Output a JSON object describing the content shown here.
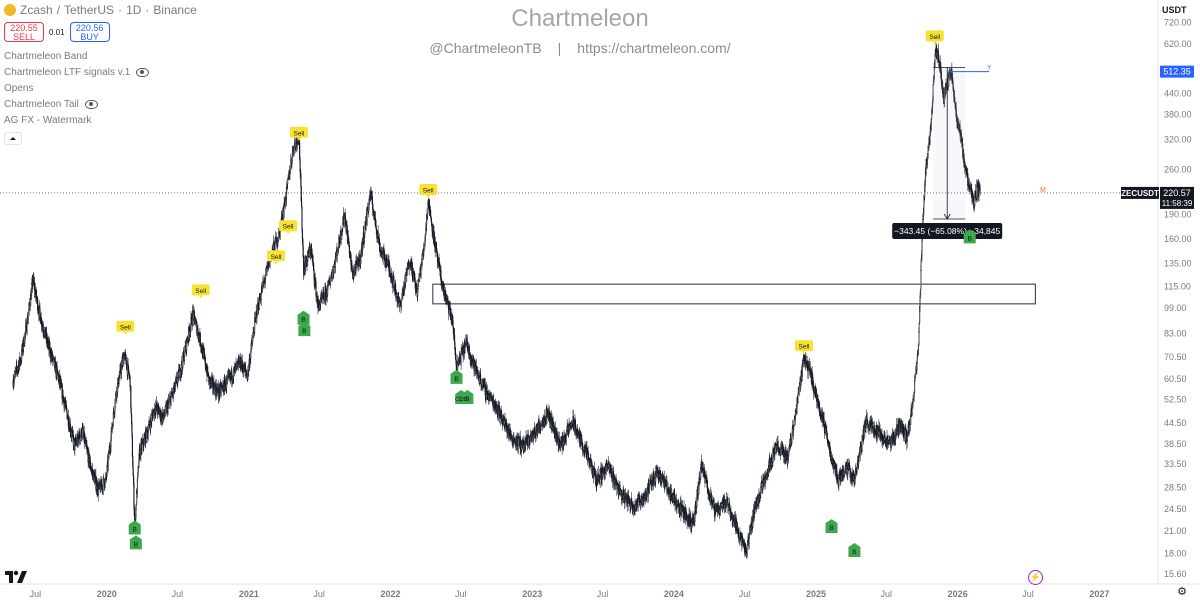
{
  "header": {
    "symbol": "Zcash",
    "separator": "/",
    "quote": "TetherUS",
    "interval": "1D",
    "exchange": "Binance",
    "sell_price": "220.55",
    "sell_label": "SELL",
    "spread": "0.01",
    "buy_price": "220.56",
    "buy_label": "BUY",
    "indicators": [
      {
        "label": "Chartmeleon Band",
        "hidden": false
      },
      {
        "label": "Chartmeleon LTF signals v.1",
        "hidden": true
      },
      {
        "label": "Opens",
        "hidden": false
      },
      {
        "label": "Chartmeleon Tail",
        "hidden": true
      },
      {
        "label": "AG FX - Watermark",
        "hidden": false
      }
    ]
  },
  "watermark": {
    "brand": "Chartmeleon",
    "handle": "@ChartmeleonTB",
    "divider": "|",
    "url": "https://chartmeleon.com/"
  },
  "currency": "USDT",
  "colors": {
    "sell_badge": "#f7e233",
    "buy_badge": "#3ea84d",
    "last_price_badge": "#131722",
    "horizontal_ray": "#2962ff",
    "sell_text": "#f23645",
    "buy_text": "#2962ff"
  },
  "chart_data": {
    "type": "candlestick",
    "scale": "log",
    "ylim": [
      15.6,
      765
    ],
    "xlim": [
      "2019-04-01",
      "2027-06-01"
    ],
    "y_ticks": [
      "720.00",
      "620.00",
      "440.00",
      "380.00",
      "320.00",
      "260.00",
      "190.00",
      "160.00",
      "135.00",
      "115.00",
      "99.00",
      "83.00",
      "70.50",
      "60.50",
      "52.50",
      "44.50",
      "38.50",
      "33.50",
      "28.50",
      "24.50",
      "21.00",
      "18.00",
      "15.60"
    ],
    "y_tick_values": [
      720,
      620,
      440,
      380,
      320,
      260,
      190,
      160,
      135,
      115,
      99,
      83,
      70.5,
      60.5,
      52.5,
      44.5,
      38.5,
      33.5,
      28.5,
      24.5,
      21,
      18,
      15.6
    ],
    "x_ticks": [
      {
        "label": "Jul",
        "date": "2019-07-01"
      },
      {
        "label": "2020",
        "date": "2020-01-01"
      },
      {
        "label": "Jul",
        "date": "2020-07-01"
      },
      {
        "label": "2021",
        "date": "2021-01-01"
      },
      {
        "label": "Jul",
        "date": "2021-07-01"
      },
      {
        "label": "2022",
        "date": "2022-01-01"
      },
      {
        "label": "Jul",
        "date": "2022-07-01"
      },
      {
        "label": "2023",
        "date": "2023-01-01"
      },
      {
        "label": "Jul",
        "date": "2023-07-01"
      },
      {
        "label": "2024",
        "date": "2024-01-01"
      },
      {
        "label": "Jul",
        "date": "2024-07-01"
      },
      {
        "label": "2025",
        "date": "2025-01-01"
      },
      {
        "label": "Jul",
        "date": "2025-07-01"
      },
      {
        "label": "2026",
        "date": "2026-01-01"
      },
      {
        "label": "Jul",
        "date": "2026-07-01"
      },
      {
        "label": "2027",
        "date": "2027-01-01"
      }
    ],
    "price_path": [
      [
        "2019-05-05",
        60
      ],
      [
        "2019-05-25",
        70
      ],
      [
        "2019-06-10",
        90
      ],
      [
        "2019-06-25",
        120
      ],
      [
        "2019-07-12",
        95
      ],
      [
        "2019-08-05",
        75
      ],
      [
        "2019-08-28",
        62
      ],
      [
        "2019-09-20",
        48
      ],
      [
        "2019-10-10",
        38
      ],
      [
        "2019-10-30",
        42
      ],
      [
        "2019-11-20",
        33
      ],
      [
        "2019-12-10",
        28
      ],
      [
        "2019-12-30",
        30
      ],
      [
        "2020-01-25",
        55
      ],
      [
        "2020-02-15",
        72
      ],
      [
        "2020-03-01",
        60
      ],
      [
        "2020-03-13",
        22
      ],
      [
        "2020-03-25",
        36
      ],
      [
        "2020-04-15",
        42
      ],
      [
        "2020-05-05",
        50
      ],
      [
        "2020-05-25",
        46
      ],
      [
        "2020-06-20",
        55
      ],
      [
        "2020-07-10",
        65
      ],
      [
        "2020-08-10",
        95
      ],
      [
        "2020-08-28",
        80
      ],
      [
        "2020-09-20",
        60
      ],
      [
        "2020-10-15",
        55
      ],
      [
        "2020-11-10",
        60
      ],
      [
        "2020-12-10",
        68
      ],
      [
        "2020-12-28",
        62
      ],
      [
        "2021-01-20",
        95
      ],
      [
        "2021-02-10",
        120
      ],
      [
        "2021-02-28",
        145
      ],
      [
        "2021-03-20",
        165
      ],
      [
        "2021-04-05",
        210
      ],
      [
        "2021-04-25",
        300
      ],
      [
        "2021-05-10",
        330
      ],
      [
        "2021-05-22",
        130
      ],
      [
        "2021-06-10",
        150
      ],
      [
        "2021-06-28",
        100
      ],
      [
        "2021-07-20",
        110
      ],
      [
        "2021-08-10",
        135
      ],
      [
        "2021-09-05",
        190
      ],
      [
        "2021-09-25",
        125
      ],
      [
        "2021-10-15",
        140
      ],
      [
        "2021-11-10",
        220
      ],
      [
        "2021-12-05",
        150
      ],
      [
        "2021-12-30",
        130
      ],
      [
        "2022-01-25",
        100
      ],
      [
        "2022-02-20",
        140
      ],
      [
        "2022-03-10",
        110
      ],
      [
        "2022-03-28",
        150
      ],
      [
        "2022-04-08",
        210
      ],
      [
        "2022-05-01",
        140
      ],
      [
        "2022-05-15",
        115
      ],
      [
        "2022-06-10",
        90
      ],
      [
        "2022-06-20",
        65
      ],
      [
        "2022-07-15",
        78
      ],
      [
        "2022-08-05",
        66
      ],
      [
        "2022-09-05",
        55
      ],
      [
        "2022-10-01",
        50
      ],
      [
        "2022-11-10",
        40
      ],
      [
        "2022-12-10",
        38
      ],
      [
        "2023-01-10",
        42
      ],
      [
        "2023-02-10",
        48
      ],
      [
        "2023-03-15",
        38
      ],
      [
        "2023-04-15",
        45
      ],
      [
        "2023-05-20",
        36
      ],
      [
        "2023-06-15",
        30
      ],
      [
        "2023-07-15",
        33
      ],
      [
        "2023-08-20",
        27
      ],
      [
        "2023-09-20",
        25
      ],
      [
        "2023-10-20",
        27
      ],
      [
        "2023-11-20",
        32
      ],
      [
        "2023-12-25",
        27
      ],
      [
        "2024-01-25",
        24
      ],
      [
        "2024-02-20",
        22
      ],
      [
        "2024-03-12",
        33
      ],
      [
        "2024-04-15",
        24
      ],
      [
        "2024-05-15",
        26
      ],
      [
        "2024-06-15",
        21
      ],
      [
        "2024-07-05",
        18
      ],
      [
        "2024-07-25",
        24
      ],
      [
        "2024-08-20",
        30
      ],
      [
        "2024-09-20",
        38
      ],
      [
        "2024-10-20",
        35
      ],
      [
        "2024-11-10",
        48
      ],
      [
        "2024-11-30",
        70
      ],
      [
        "2024-12-15",
        65
      ],
      [
        "2024-12-30",
        55
      ],
      [
        "2025-01-20",
        45
      ],
      [
        "2025-02-10",
        35
      ],
      [
        "2025-02-28",
        30
      ],
      [
        "2025-03-20",
        33
      ],
      [
        "2025-04-10",
        30
      ],
      [
        "2025-05-10",
        45
      ],
      [
        "2025-06-10",
        42
      ],
      [
        "2025-07-10",
        38
      ],
      [
        "2025-08-05",
        44
      ],
      [
        "2025-08-25",
        40
      ],
      [
        "2025-09-10",
        55
      ],
      [
        "2025-09-22",
        75
      ],
      [
        "2025-10-01",
        160
      ],
      [
        "2025-10-10",
        260
      ],
      [
        "2025-10-22",
        330
      ],
      [
        "2025-11-05",
        600
      ],
      [
        "2025-11-15",
        560
      ],
      [
        "2025-11-25",
        420
      ],
      [
        "2025-12-05",
        470
      ],
      [
        "2025-12-15",
        520
      ],
      [
        "2025-12-25",
        400
      ],
      [
        "2026-01-08",
        330
      ],
      [
        "2026-01-20",
        260
      ],
      [
        "2026-02-01",
        230
      ],
      [
        "2026-02-10",
        205
      ],
      [
        "2026-02-20",
        225
      ],
      [
        "2026-02-28",
        220.57
      ]
    ],
    "signals": [
      {
        "type": "Sell",
        "date": "2020-02-18",
        "price": 87
      },
      {
        "type": "Sell",
        "date": "2020-08-30",
        "price": 112
      },
      {
        "type": "Sell",
        "date": "2021-03-12",
        "price": 142
      },
      {
        "type": "Sell",
        "date": "2021-04-12",
        "price": 175
      },
      {
        "type": "Sell",
        "date": "2021-05-10",
        "price": 335
      },
      {
        "type": "Sell",
        "date": "2022-04-08",
        "price": 225
      },
      {
        "type": "Sell",
        "date": "2024-12-01",
        "price": 76
      },
      {
        "type": "Sell",
        "date": "2025-11-03",
        "price": 655
      },
      {
        "type": "B",
        "date": "2020-03-13",
        "price": 21.4
      },
      {
        "type": "B",
        "date": "2020-03-16",
        "price": 19.3
      },
      {
        "type": "B",
        "date": "2021-05-22",
        "price": 92
      },
      {
        "type": "B",
        "date": "2021-05-24",
        "price": 85
      },
      {
        "type": "B",
        "date": "2022-06-20",
        "price": 61
      },
      {
        "type": "B",
        "date": "2022-07-02",
        "price": 53
      },
      {
        "type": "B",
        "date": "2022-07-18",
        "price": 53
      },
      {
        "type": "B",
        "date": "2025-02-10",
        "price": 21.6
      },
      {
        "type": "B",
        "date": "2025-04-10",
        "price": 18.3
      },
      {
        "type": "B",
        "date": "2026-02-01",
        "price": 162
      }
    ],
    "signal_inner_label": "C 3D",
    "zone": {
      "x0": "2022-04-20",
      "x1": "2026-07-20",
      "y_low": 102,
      "y_high": 117
    },
    "measure": {
      "date": "2025-12-05",
      "from_price": 528,
      "to_price": 184,
      "text": "−343.45 (−65.08%) −34,845"
    },
    "ray": {
      "date_start": "2025-12-10",
      "price": 512.35,
      "label": "512.35",
      "tag": "Y"
    },
    "last_price": {
      "price": 220.57,
      "symbol": "ZECUSDT",
      "value": "220.57",
      "countdown": "11:58:39",
      "tag": "M"
    }
  }
}
